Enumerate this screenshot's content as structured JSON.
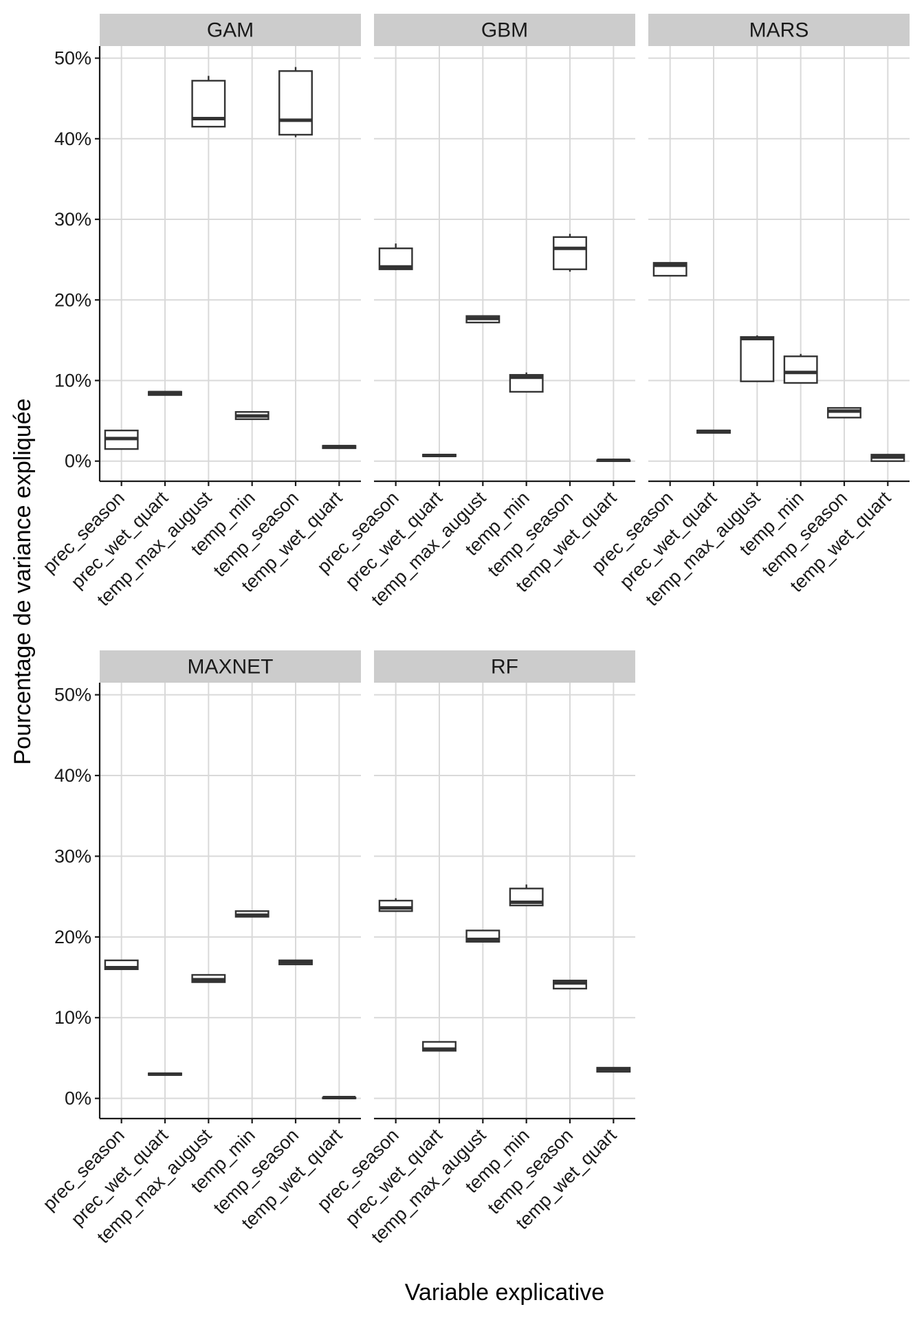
{
  "chart_data": {
    "type": "boxplot",
    "xlabel": "Variable explicative",
    "ylabel": "Pourcentage de variance expliquée",
    "ylim": [
      -2.5,
      51.5
    ],
    "y_ticks": [
      0,
      10,
      20,
      30,
      40,
      50
    ],
    "y_tick_labels": [
      "0%",
      "10%",
      "20%",
      "30%",
      "40%",
      "50%"
    ],
    "categories": [
      "prec_season",
      "prec_wet_quart",
      "temp_max_august",
      "temp_min",
      "temp_season",
      "temp_wet_quart"
    ],
    "grid": true,
    "panels": [
      {
        "name": "GAM",
        "boxes": [
          {
            "min": 1.5,
            "q1": 1.5,
            "median": 2.8,
            "q3": 3.8,
            "max": 3.8
          },
          {
            "min": 8.2,
            "q1": 8.2,
            "median": 8.5,
            "q3": 8.6,
            "max": 8.7
          },
          {
            "min": 41.5,
            "q1": 41.5,
            "median": 42.5,
            "q3": 47.2,
            "max": 47.8
          },
          {
            "min": 5.2,
            "q1": 5.2,
            "median": 5.6,
            "q3": 6.1,
            "max": 6.1
          },
          {
            "min": 40.2,
            "q1": 40.5,
            "median": 42.3,
            "q3": 48.4,
            "max": 48.9
          },
          {
            "min": 1.6,
            "q1": 1.6,
            "median": 1.8,
            "q3": 1.9,
            "max": 1.9
          }
        ]
      },
      {
        "name": "GBM",
        "boxes": [
          {
            "min": 23.7,
            "q1": 23.8,
            "median": 24.1,
            "q3": 26.4,
            "max": 27.0
          },
          {
            "min": 0.5,
            "q1": 0.6,
            "median": 0.7,
            "q3": 0.8,
            "max": 0.8
          },
          {
            "min": 17.2,
            "q1": 17.2,
            "median": 17.7,
            "q3": 18.0,
            "max": 18.0
          },
          {
            "min": 8.6,
            "q1": 8.6,
            "median": 10.4,
            "q3": 10.7,
            "max": 11.0
          },
          {
            "min": 23.5,
            "q1": 23.8,
            "median": 26.4,
            "q3": 27.8,
            "max": 28.2
          },
          {
            "min": 0.0,
            "q1": 0.0,
            "median": 0.1,
            "q3": 0.1,
            "max": 0.1
          }
        ]
      },
      {
        "name": "MARS",
        "boxes": [
          {
            "min": 23.0,
            "q1": 23.0,
            "median": 24.3,
            "q3": 24.6,
            "max": 24.6
          },
          {
            "min": 3.5,
            "q1": 3.5,
            "median": 3.7,
            "q3": 3.8,
            "max": 3.8
          },
          {
            "min": 9.9,
            "q1": 9.9,
            "median": 15.2,
            "q3": 15.4,
            "max": 15.6
          },
          {
            "min": 9.7,
            "q1": 9.7,
            "median": 11.0,
            "q3": 13.0,
            "max": 13.3
          },
          {
            "min": 5.4,
            "q1": 5.4,
            "median": 6.2,
            "q3": 6.6,
            "max": 6.6
          },
          {
            "min": 0.0,
            "q1": 0.0,
            "median": 0.5,
            "q3": 0.8,
            "max": 0.8
          }
        ]
      },
      {
        "name": "MAXNET",
        "boxes": [
          {
            "min": 16.0,
            "q1": 16.0,
            "median": 16.2,
            "q3": 17.1,
            "max": 17.1
          },
          {
            "min": 2.9,
            "q1": 2.9,
            "median": 3.0,
            "q3": 3.1,
            "max": 3.1
          },
          {
            "min": 14.4,
            "q1": 14.4,
            "median": 14.7,
            "q3": 15.3,
            "max": 15.3
          },
          {
            "min": 22.5,
            "q1": 22.5,
            "median": 22.7,
            "q3": 23.2,
            "max": 23.2
          },
          {
            "min": 16.6,
            "q1": 16.6,
            "median": 16.9,
            "q3": 17.1,
            "max": 17.1
          },
          {
            "min": 0.0,
            "q1": 0.0,
            "median": 0.1,
            "q3": 0.1,
            "max": 0.1
          }
        ]
      },
      {
        "name": "RF",
        "boxes": [
          {
            "min": 23.2,
            "q1": 23.2,
            "median": 23.6,
            "q3": 24.5,
            "max": 24.8
          },
          {
            "min": 5.9,
            "q1": 5.9,
            "median": 6.1,
            "q3": 7.0,
            "max": 7.0
          },
          {
            "min": 19.4,
            "q1": 19.4,
            "median": 19.7,
            "q3": 20.8,
            "max": 20.8
          },
          {
            "min": 23.9,
            "q1": 23.9,
            "median": 24.3,
            "q3": 26.0,
            "max": 26.5
          },
          {
            "min": 13.6,
            "q1": 13.6,
            "median": 14.3,
            "q3": 14.6,
            "max": 14.6
          },
          {
            "min": 3.3,
            "q1": 3.3,
            "median": 3.6,
            "q3": 3.8,
            "max": 3.8
          }
        ]
      }
    ]
  }
}
